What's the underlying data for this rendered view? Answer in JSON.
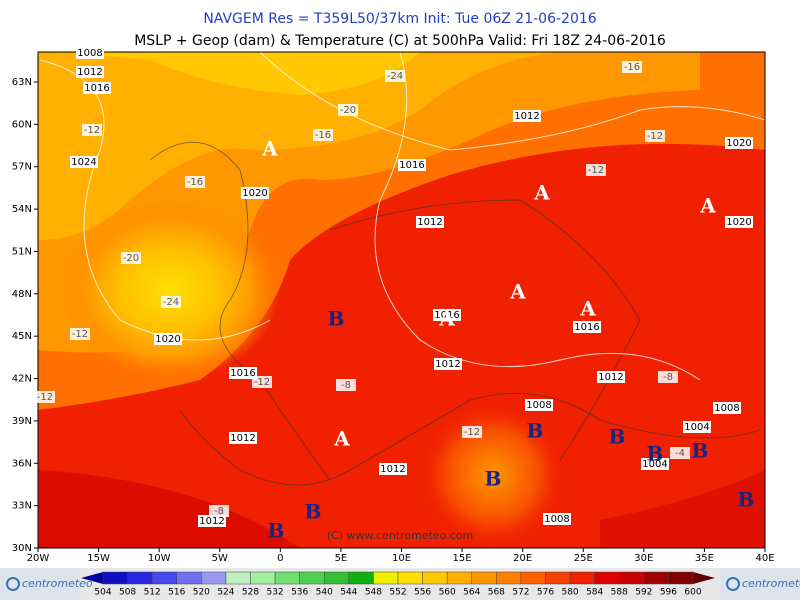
{
  "header": {
    "title": "NAVGEM Res = T359L50/37km   Init: Tue 06Z 21-06-2016",
    "subtitle": "MSLP + Geop (dam) & Temperature (C) at 500hPa   Valid: Fri 18Z 24-06-2016"
  },
  "map": {
    "latitudes": [
      "63N",
      "60N",
      "57N",
      "54N",
      "51N",
      "48N",
      "45N",
      "42N",
      "39N",
      "36N",
      "33N",
      "30N"
    ],
    "longitudes": [
      "20W",
      "15W",
      "10W",
      "5W",
      "0",
      "5E",
      "10E",
      "15E",
      "20E",
      "25E",
      "30E",
      "35E",
      "40E"
    ],
    "pressure_labels": [
      "1008",
      "1012",
      "1016",
      "1024",
      "1020",
      "1020",
      "1016",
      "1012",
      "1012",
      "1012",
      "1012",
      "1016",
      "1012",
      "1016",
      "1012",
      "1016",
      "1012",
      "1008",
      "1008",
      "1004",
      "1004",
      "1008",
      "1020",
      "1020"
    ],
    "temperature_labels": [
      "-24",
      "-16",
      "-20",
      "-16",
      "-12",
      "-16",
      "-12",
      "-12",
      "-20",
      "-24",
      "-12",
      "-12",
      "-8",
      "-12",
      "-12",
      "-8",
      "-4",
      "-8"
    ],
    "highs": [
      "A",
      "A",
      "A",
      "A",
      "A",
      "A",
      "A"
    ],
    "lows": [
      "B",
      "B",
      "B",
      "B",
      "B",
      "B",
      "B",
      "B",
      "B"
    ],
    "copyright": "(C) www.centrometeo.com"
  },
  "colorbar": {
    "labels": [
      504,
      508,
      512,
      516,
      520,
      524,
      528,
      532,
      536,
      540,
      544,
      548,
      552,
      556,
      560,
      564,
      568,
      572,
      576,
      580,
      584,
      588,
      592,
      596,
      600
    ],
    "colors": [
      "#1010c0",
      "#2828e0",
      "#4848f0",
      "#7070f0",
      "#9898f0",
      "#c0f0c0",
      "#a0f0a0",
      "#70e070",
      "#50d050",
      "#30c030",
      "#10b010",
      "#f0f000",
      "#ffe000",
      "#ffc800",
      "#ffb000",
      "#ff9800",
      "#ff8000",
      "#ff6000",
      "#f84000",
      "#f02000",
      "#e00000",
      "#c80000",
      "#a00000",
      "#800000"
    ]
  },
  "logo": "centrometeo"
}
